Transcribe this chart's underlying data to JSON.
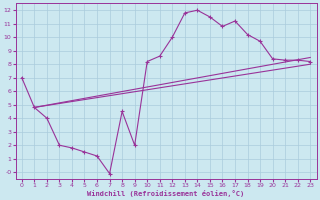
{
  "xlabel": "Windchill (Refroidissement éolien,°C)",
  "background_color": "#cce8f0",
  "grid_color": "#aaccdd",
  "line_color": "#993399",
  "xlim": [
    -0.5,
    23.5
  ],
  "ylim": [
    -0.5,
    12.5
  ],
  "xticks": [
    0,
    1,
    2,
    3,
    4,
    5,
    6,
    7,
    8,
    9,
    10,
    11,
    12,
    13,
    14,
    15,
    16,
    17,
    18,
    19,
    20,
    21,
    22,
    23
  ],
  "yticks": [
    0,
    1,
    2,
    3,
    4,
    5,
    6,
    7,
    8,
    9,
    10,
    11,
    12
  ],
  "ytick_labels": [
    "-0",
    "1",
    "2",
    "3",
    "4",
    "5",
    "6",
    "7",
    "8",
    "9",
    "10",
    "11",
    "12"
  ],
  "line1_x": [
    0,
    1,
    2,
    3,
    4,
    5,
    6,
    7,
    8,
    9,
    10,
    11,
    12,
    13,
    14,
    15,
    16,
    17,
    18,
    19,
    20,
    21,
    22,
    23
  ],
  "line1_y": [
    7.0,
    4.8,
    4.0,
    2.0,
    1.8,
    1.5,
    1.2,
    -0.1,
    4.5,
    2.0,
    8.2,
    8.6,
    10.0,
    11.8,
    12.0,
    11.5,
    10.8,
    11.2,
    10.2,
    9.7,
    8.4,
    8.3,
    8.3,
    8.2
  ],
  "line2_x": [
    1,
    23
  ],
  "line2_y": [
    4.8,
    8.5
  ],
  "line3_x": [
    1,
    23
  ],
  "line3_y": [
    4.8,
    8.0
  ]
}
